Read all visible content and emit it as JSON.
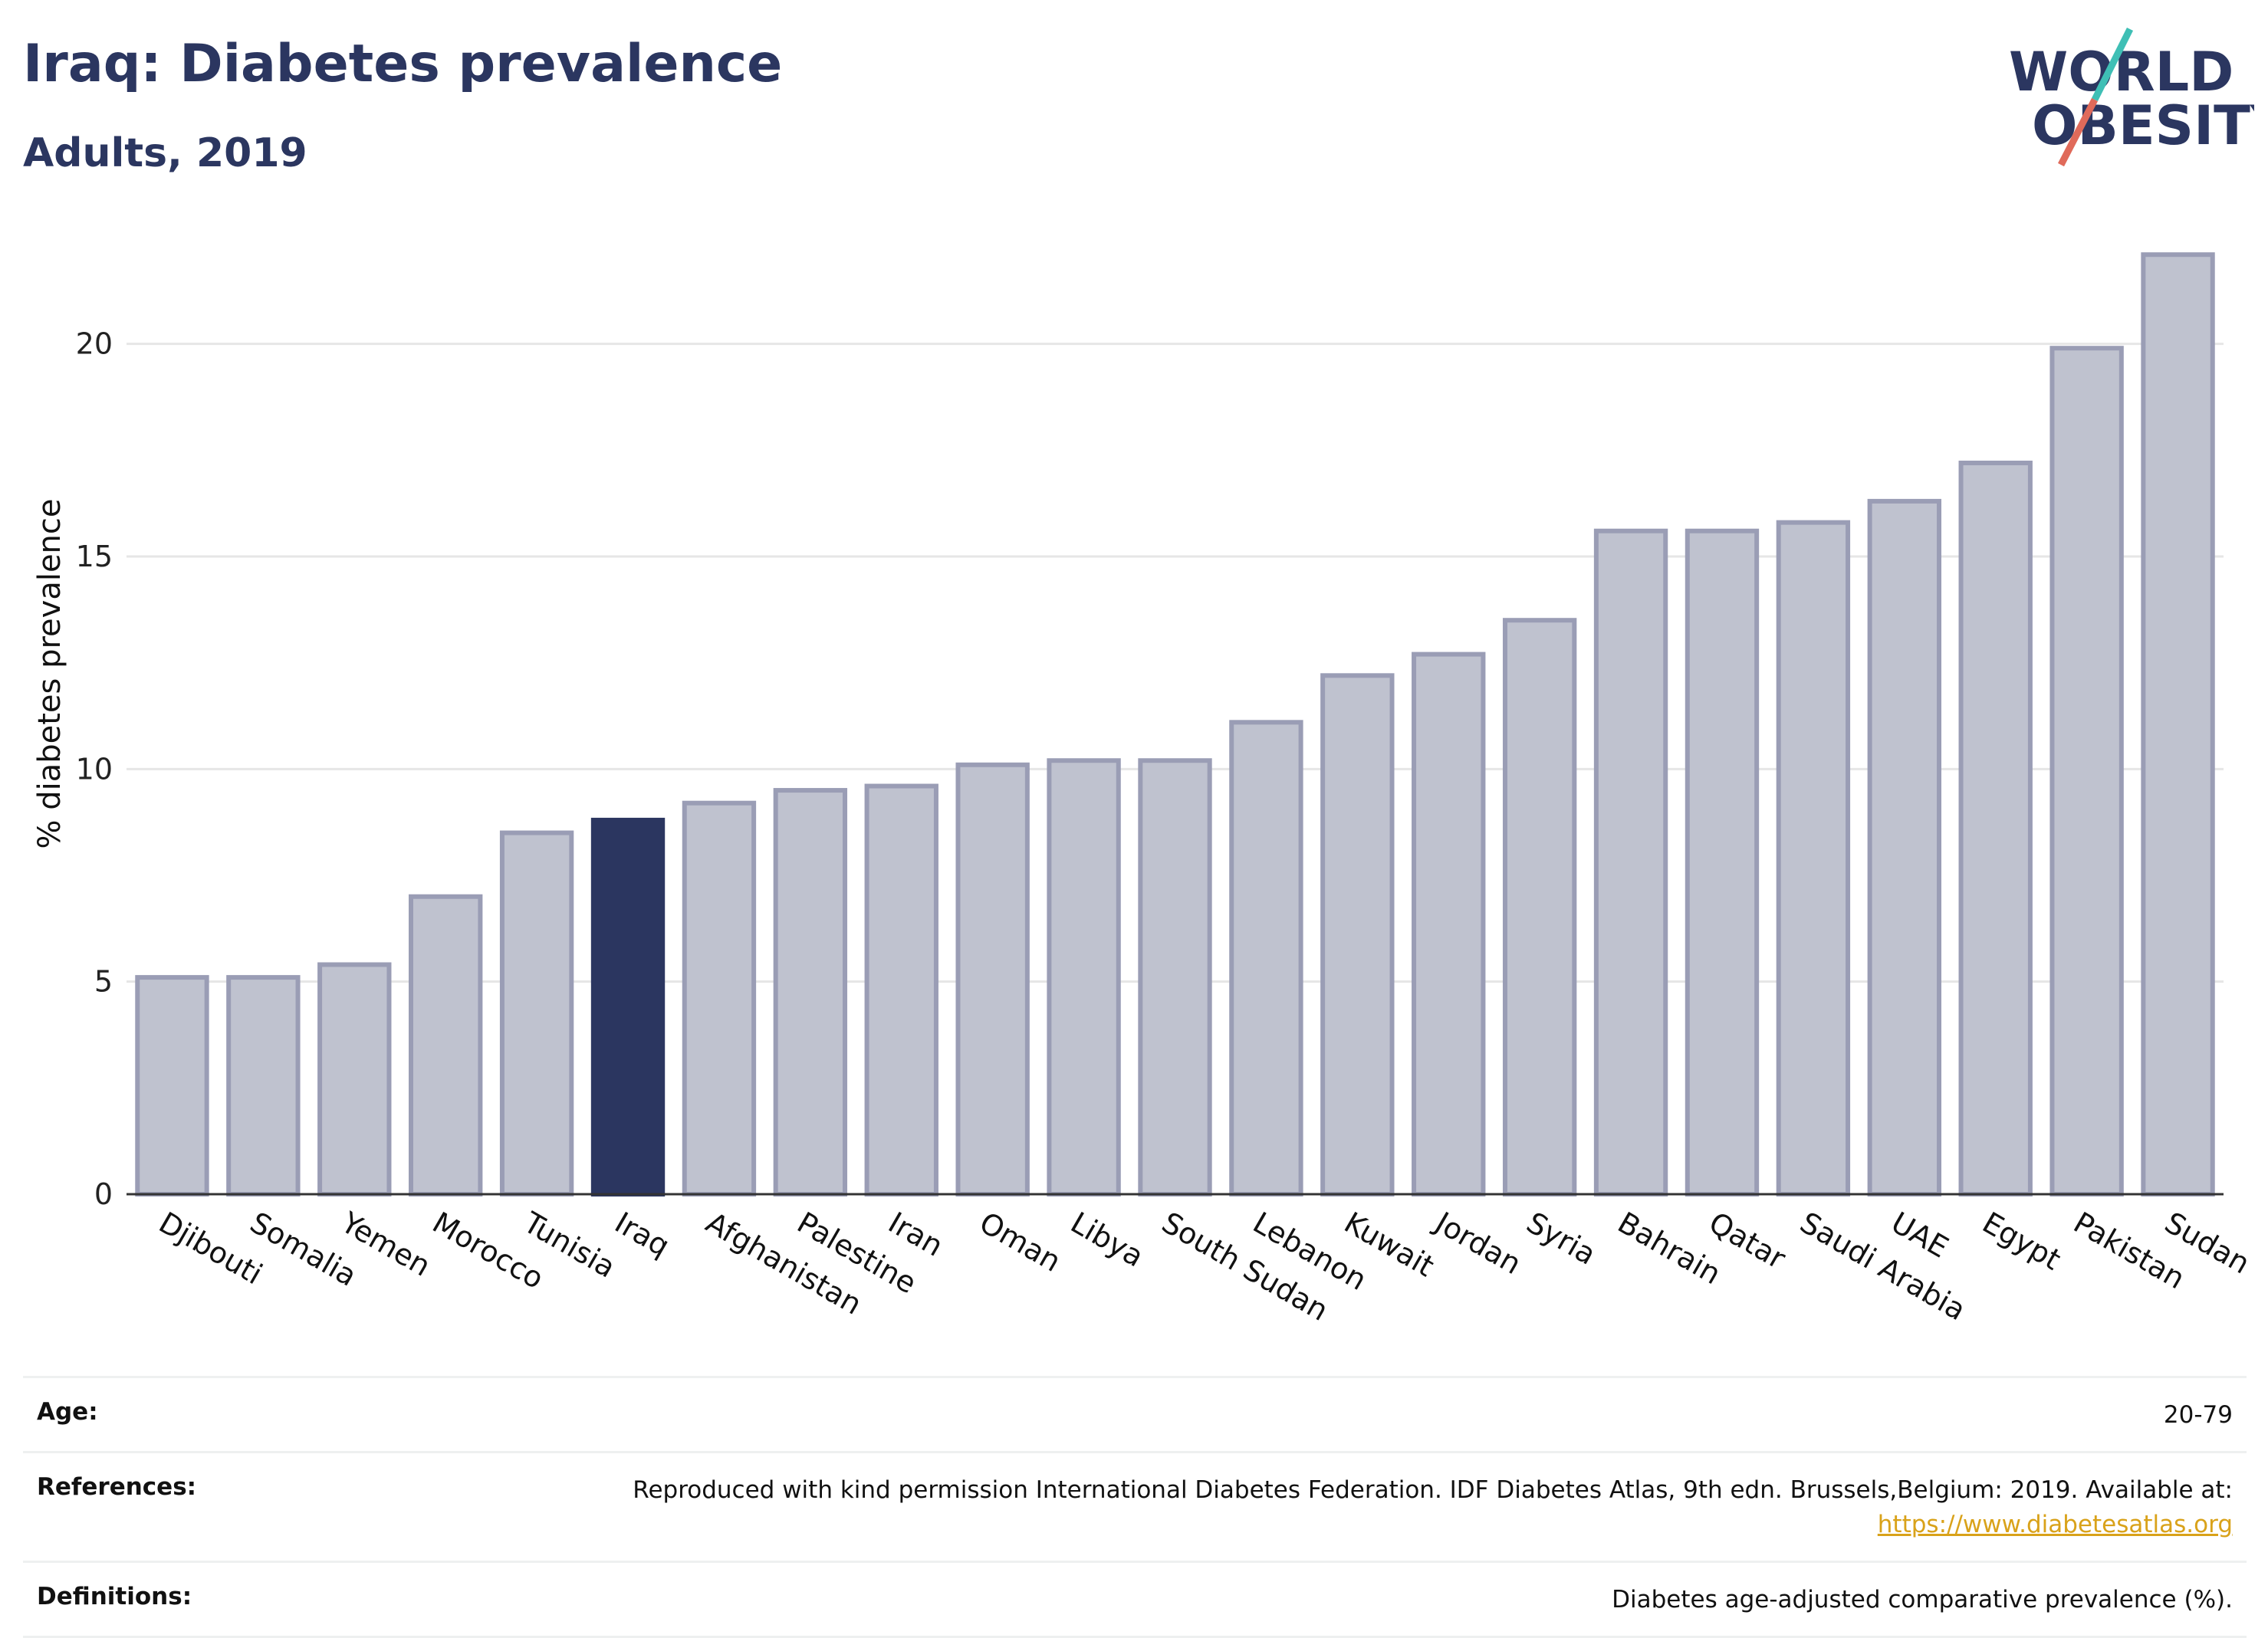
{
  "header": {
    "title": "Iraq: Diabetes prevalence",
    "subtitle": "Adults, 2019"
  },
  "logo": {
    "line1": "WORLD",
    "line2": "OBESITY",
    "slash_colors": [
      "#3fbfb5",
      "#e06a5a"
    ]
  },
  "colors": {
    "highlight": "#2b3660",
    "bar_fill": "#bfc2cf",
    "bar_stroke": "#9a9db5",
    "grid": "#e6e6e6"
  },
  "chart_data": {
    "type": "bar",
    "title": "",
    "xlabel": "",
    "ylabel": "% diabetes prevalence",
    "ylim": [
      0,
      22.5
    ],
    "yticks": [
      0,
      5,
      10,
      15,
      20
    ],
    "grid": true,
    "highlight": "Iraq",
    "categories": [
      "Djibouti",
      "Somalia",
      "Yemen",
      "Morocco",
      "Tunisia",
      "Iraq",
      "Afghanistan",
      "Palestine",
      "Iran",
      "Oman",
      "Libya",
      "South Sudan",
      "Lebanon",
      "Kuwait",
      "Jordan",
      "Syria",
      "Bahrain",
      "Qatar",
      "Saudi Arabia",
      "UAE",
      "Egypt",
      "Pakistan",
      "Sudan"
    ],
    "values": [
      5.1,
      5.1,
      5.4,
      7.0,
      8.5,
      8.8,
      9.2,
      9.5,
      9.6,
      10.1,
      10.2,
      10.2,
      11.1,
      12.2,
      12.7,
      13.5,
      15.6,
      15.6,
      15.8,
      16.3,
      17.2,
      19.9,
      22.1
    ]
  },
  "info": {
    "age_label": "Age:",
    "age_value": "20-79",
    "references_label": "References:",
    "references_text": "Reproduced with kind permission International Diabetes Federation. IDF Diabetes Atlas, 9th edn. Brussels,Belgium: 2019. Available at:",
    "references_link": "https://www.diabetesatlas.org",
    "definitions_label": "Definitions:",
    "definitions_value": "Diabetes age-adjusted comparative prevalence (%)."
  }
}
